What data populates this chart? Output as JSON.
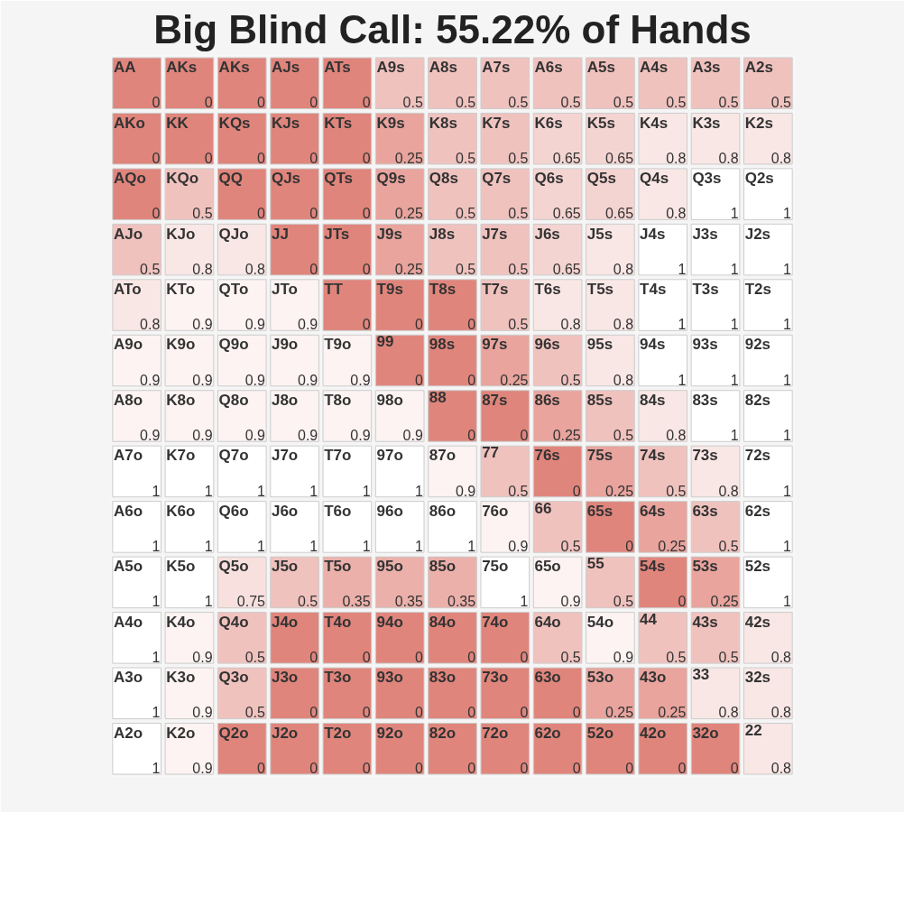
{
  "chart_data": {
    "type": "heatmap",
    "title": "Big Blind Call: 55.22% of Hands",
    "color": "#e0857c",
    "data_labels": true,
    "categories": [
      null,
      null,
      null,
      null,
      null,
      null,
      null,
      null,
      null,
      null,
      null,
      null,
      null
    ],
    "y_categories": [
      null,
      null,
      null,
      null,
      null,
      null,
      null,
      null,
      null,
      null,
      null,
      null,
      null
    ],
    "cells": [
      [
        0,
        0,
        0,
        0,
        0,
        0.5,
        0.5,
        0.5,
        0.5,
        0.5,
        0.5,
        0.5,
        0.5
      ],
      [
        0,
        0,
        0,
        0,
        0,
        0.25,
        0.5,
        0.5,
        0.65,
        0.65,
        0.8,
        0.8,
        0.8
      ],
      [
        0,
        0.5,
        0,
        0,
        0,
        0.25,
        0.5,
        0.5,
        0.65,
        0.65,
        0.8,
        1,
        1
      ],
      [
        0.5,
        0.8,
        0.8,
        0,
        0,
        0.25,
        0.5,
        0.5,
        0.65,
        0.8,
        1,
        1,
        1
      ],
      [
        0.8,
        0.9,
        0.9,
        0.9,
        0,
        0,
        0,
        0.5,
        0.8,
        0.8,
        1,
        1,
        1
      ],
      [
        0.9,
        0.9,
        0.9,
        0.9,
        0.9,
        0,
        0,
        0.25,
        0.5,
        0.8,
        1,
        1,
        1
      ],
      [
        0.9,
        0.9,
        0.9,
        0.9,
        0.9,
        0.9,
        0,
        0,
        0.25,
        0.5,
        0.8,
        1,
        1
      ],
      [
        1,
        1,
        1,
        1,
        1,
        1,
        0.9,
        0.5,
        0,
        0.25,
        0.5,
        0.8,
        1
      ],
      [
        1,
        1,
        1,
        1,
        1,
        1,
        1,
        0.9,
        0.5,
        0,
        0.25,
        0.5,
        1
      ],
      [
        1,
        1,
        0.75,
        0.5,
        0.35,
        0.35,
        0.35,
        1,
        0.9,
        0.5,
        0,
        0.25,
        1
      ],
      [
        1,
        0.9,
        0.5,
        0,
        0,
        0,
        0,
        0,
        0.5,
        0.9,
        0.5,
        0.5,
        0.8
      ],
      [
        1,
        0.9,
        0.5,
        0,
        0,
        0,
        0,
        0,
        0,
        0.25,
        0.25,
        0.8,
        0.8
      ],
      [
        1,
        0.9,
        0,
        0,
        0,
        0,
        0,
        0,
        0,
        0,
        0,
        0,
        0.8
      ]
    ],
    "annotations": [
      "AA",
      "AKs",
      "AKs",
      "AJs",
      "ATs",
      "A9s",
      "A8s",
      "A7s",
      "A6s",
      "A5s",
      "A4s",
      "A3s",
      "A2s",
      "AKo",
      "KK",
      "KQs",
      "KJs",
      "KTs",
      "K9s",
      "K8s",
      "K7s",
      "K6s",
      "K5s",
      "K4s",
      "K3s",
      "K2s",
      "AQo",
      "KQo",
      "QQ",
      "QJs",
      "QTs",
      "Q9s",
      "Q8s",
      "Q7s",
      "Q6s",
      "Q5s",
      "Q4s",
      "Q3s",
      "Q2s",
      "AJo",
      "KJo",
      "QJo",
      "JJ",
      "JTs",
      "J9s",
      "J8s",
      "J7s",
      "J6s",
      "J5s",
      "J4s",
      "J3s",
      "J2s",
      "ATo",
      "KTo",
      "QTo",
      "JTo",
      "TT",
      "T9s",
      "T8s",
      "T7s",
      "T6s",
      "T5s",
      "T4s",
      "T3s",
      "T2s",
      "A9o",
      "K9o",
      "Q9o",
      "J9o",
      "T9o",
      "99",
      "98s",
      "97s",
      "96s",
      "95s",
      "94s",
      "93s",
      "92s",
      "A8o",
      "K8o",
      "Q8o",
      "J8o",
      "T8o",
      "98o",
      "88",
      "87s",
      "86s",
      "85s",
      "84s",
      "83s",
      "82s",
      "A7o",
      "K7o",
      "Q7o",
      "J7o",
      "T7o",
      "97o",
      "87o",
      "77",
      "76s",
      "75s",
      "74s",
      "73s",
      "72s",
      "A6o",
      "K6o",
      "Q6o",
      "J6o",
      "T6o",
      "96o",
      "86o",
      "76o",
      "66",
      "65s",
      "64s",
      "63s",
      "62s",
      "A5o",
      "K5o",
      "Q5o",
      "J5o",
      "T5o",
      "95o",
      "85o",
      "75o",
      "65o",
      "55",
      "54s",
      "53s",
      "52s",
      "A4o",
      "K4o",
      "Q4o",
      "J4o",
      "T4o",
      "94o",
      "84o",
      "74o",
      "64o",
      "54o",
      "44",
      "43s",
      "42s",
      "A3o",
      "K3o",
      "Q3o",
      "J3o",
      "T3o",
      "93o",
      "83o",
      "73o",
      "63o",
      "53o",
      "43o",
      "33",
      "32s",
      "A2o",
      "K2o",
      "Q2o",
      "J2o",
      "T2o",
      "92o",
      "82o",
      "72o",
      "62o",
      "52o",
      "42o",
      "32o",
      "22"
    ]
  }
}
